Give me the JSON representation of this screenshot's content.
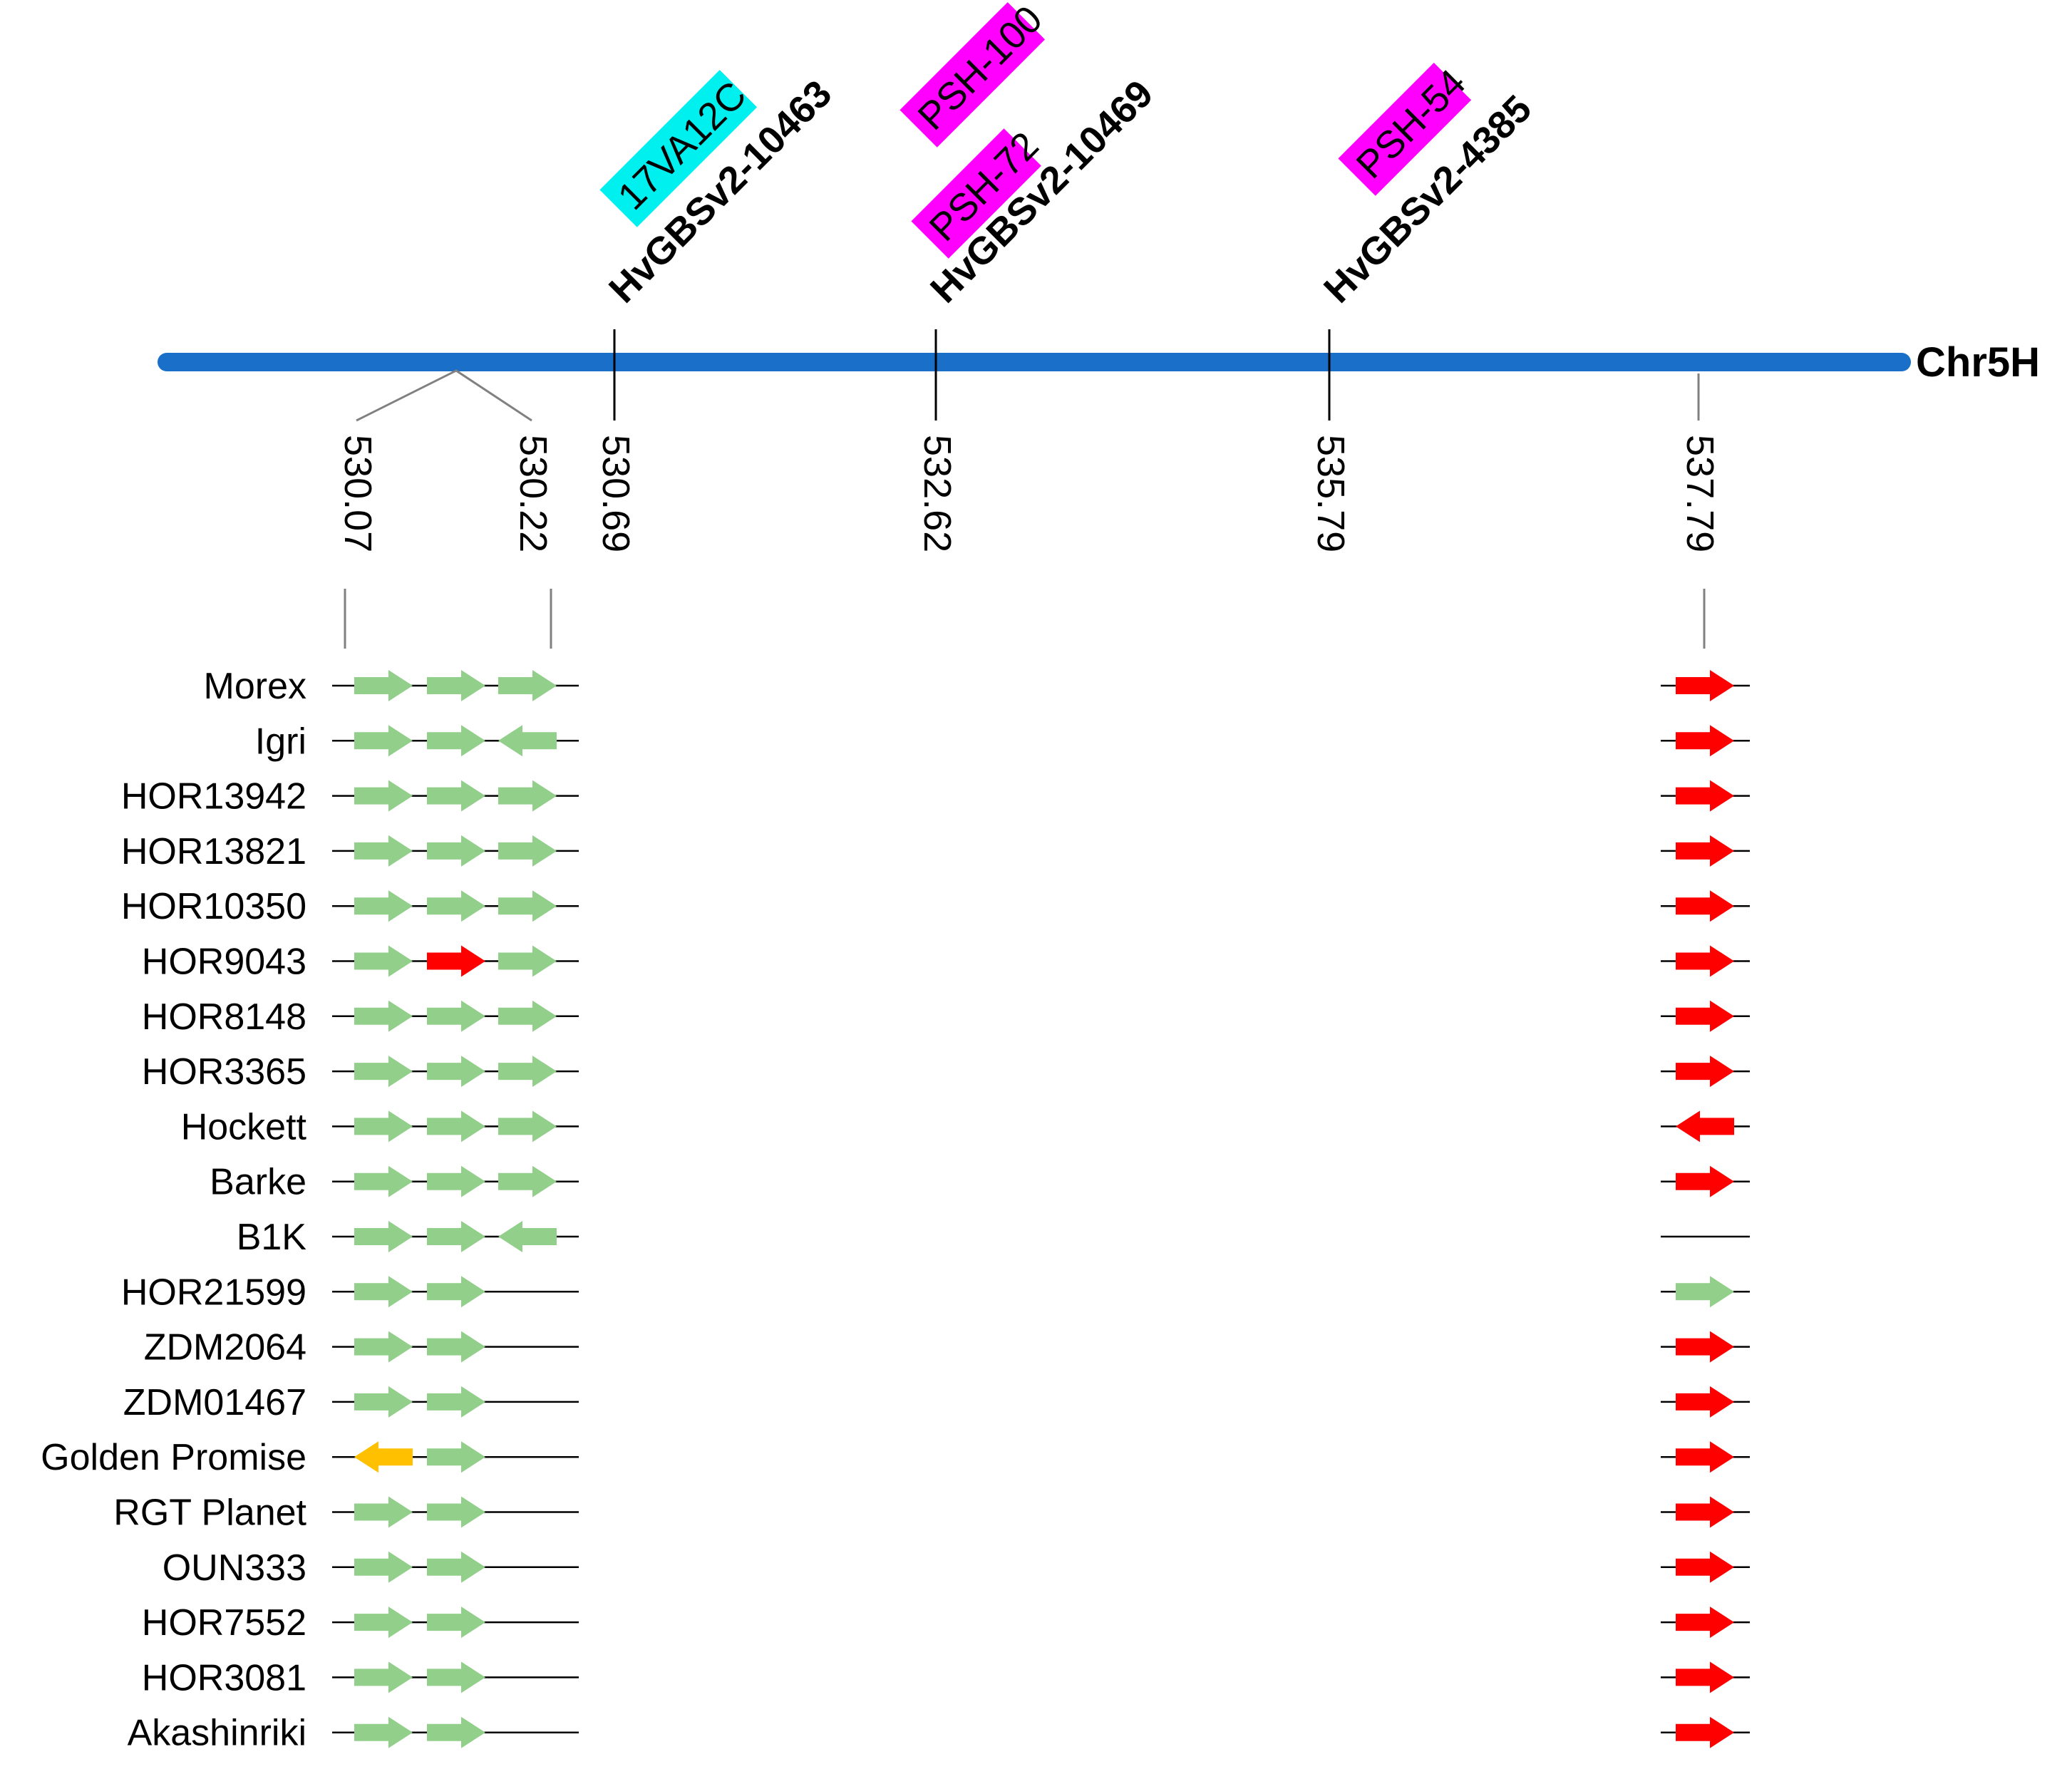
{
  "chromosome": {
    "label": "Chr5H",
    "color": "#1a6fc9"
  },
  "markers": [
    {
      "id": "m1",
      "name": "HvGBSv2-10463",
      "position": "530.69",
      "tags": [
        {
          "text": "17VA12C",
          "color": "#00f0f0"
        }
      ]
    },
    {
      "id": "m2",
      "name": "HvGBSv2-10469",
      "position": "532.62",
      "tags": [
        {
          "text": "PSH-72",
          "color": "#ff00ff"
        },
        {
          "text": "PSH-100",
          "color": "#ff00ff"
        }
      ]
    },
    {
      "id": "m3",
      "name": "HvGBSv2-4385",
      "position": "535.79",
      "tags": [
        {
          "text": "PSH-54",
          "color": "#ff00ff"
        }
      ]
    }
  ],
  "gene_positions": [
    "530.07",
    "530.22",
    "537.79"
  ],
  "colors": {
    "green": "#92cf8a",
    "red": "#ff0000",
    "orange": "#ffc000",
    "line": "#000000",
    "tick": "#808080"
  },
  "legend_note": "Arrow direction: r = forward, l = reverse; colors: g = green, r = red, o = orange",
  "accessions": [
    {
      "name": "Morex",
      "cluster": [
        "g:r",
        "g:r",
        "g:r"
      ],
      "right": "r:r"
    },
    {
      "name": "Igri",
      "cluster": [
        "g:r",
        "g:r",
        "g:l"
      ],
      "right": "r:r"
    },
    {
      "name": "HOR13942",
      "cluster": [
        "g:r",
        "g:r",
        "g:r"
      ],
      "right": "r:r"
    },
    {
      "name": "HOR13821",
      "cluster": [
        "g:r",
        "g:r",
        "g:r"
      ],
      "right": "r:r"
    },
    {
      "name": "HOR10350",
      "cluster": [
        "g:r",
        "g:r",
        "g:r"
      ],
      "right": "r:r"
    },
    {
      "name": "HOR9043",
      "cluster": [
        "g:r",
        "r:r",
        "g:r"
      ],
      "right": "r:r"
    },
    {
      "name": "HOR8148",
      "cluster": [
        "g:r",
        "g:r",
        "g:r"
      ],
      "right": "r:r"
    },
    {
      "name": "HOR3365",
      "cluster": [
        "g:r",
        "g:r",
        "g:r"
      ],
      "right": "r:r"
    },
    {
      "name": "Hockett",
      "cluster": [
        "g:r",
        "g:r",
        "g:r"
      ],
      "right": "r:l"
    },
    {
      "name": "Barke",
      "cluster": [
        "g:r",
        "g:r",
        "g:r"
      ],
      "right": "r:r"
    },
    {
      "name": "B1K",
      "cluster": [
        "g:r",
        "g:r",
        "g:l"
      ],
      "right": "none"
    },
    {
      "name": "HOR21599",
      "cluster": [
        "g:r",
        "g:r",
        "none"
      ],
      "right": "g:r"
    },
    {
      "name": "ZDM2064",
      "cluster": [
        "g:r",
        "g:r",
        "none"
      ],
      "right": "r:r"
    },
    {
      "name": "ZDM01467",
      "cluster": [
        "g:r",
        "g:r",
        "none"
      ],
      "right": "r:r"
    },
    {
      "name": "Golden Promise",
      "cluster": [
        "o:l",
        "g:r",
        "none"
      ],
      "right": "r:r"
    },
    {
      "name": "RGT Planet",
      "cluster": [
        "g:r",
        "g:r",
        "none"
      ],
      "right": "r:r"
    },
    {
      "name": "OUN333",
      "cluster": [
        "g:r",
        "g:r",
        "none"
      ],
      "right": "r:r"
    },
    {
      "name": "HOR7552",
      "cluster": [
        "g:r",
        "g:r",
        "none"
      ],
      "right": "r:r"
    },
    {
      "name": "HOR3081",
      "cluster": [
        "g:r",
        "g:r",
        "none"
      ],
      "right": "r:r"
    },
    {
      "name": "Akashinriki",
      "cluster": [
        "g:r",
        "g:r",
        "none"
      ],
      "right": "r:r"
    }
  ]
}
